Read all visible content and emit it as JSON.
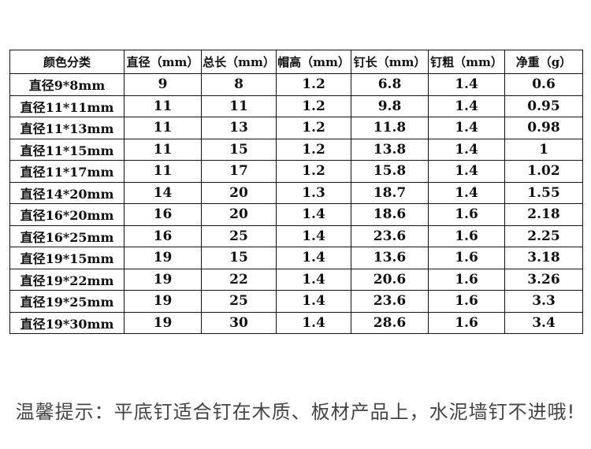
{
  "table": {
    "headers": [
      "颜色分类",
      "直径（mm）",
      "总长（mm）",
      "帽高（mm）",
      "钉长（mm）",
      "钉粗（mm）",
      "净重（g）"
    ],
    "rows": [
      [
        "直径9*8mm",
        "9",
        "8",
        "1.2",
        "6.8",
        "1.4",
        "0.6"
      ],
      [
        "直径11*11mm",
        "11",
        "11",
        "1.2",
        "9.8",
        "1.4",
        "0.95"
      ],
      [
        "直径11*13mm",
        "11",
        "13",
        "1.2",
        "11.8",
        "1.4",
        "0.98"
      ],
      [
        "直径11*15mm",
        "11",
        "15",
        "1.2",
        "13.8",
        "1.4",
        "1"
      ],
      [
        "直径11*17mm",
        "11",
        "17",
        "1.2",
        "15.8",
        "1.4",
        "1.02"
      ],
      [
        "直径14*20mm",
        "14",
        "20",
        "1.3",
        "18.7",
        "1.4",
        "1.55"
      ],
      [
        "直径16*20mm",
        "16",
        "20",
        "1.4",
        "18.6",
        "1.6",
        "2.18"
      ],
      [
        "直径16*25mm",
        "16",
        "25",
        "1.4",
        "23.6",
        "1.6",
        "2.25"
      ],
      [
        "直径19*15mm",
        "19",
        "15",
        "1.4",
        "13.6",
        "1.6",
        "3.18"
      ],
      [
        "直径19*22mm",
        "19",
        "22",
        "1.4",
        "20.6",
        "1.6",
        "3.26"
      ],
      [
        "直径19*25mm",
        "19",
        "25",
        "1.4",
        "23.6",
        "1.6",
        "3.3"
      ],
      [
        "直径19*30mm",
        "19",
        "30",
        "1.4",
        "28.6",
        "1.6",
        "3.4"
      ]
    ]
  },
  "tip": "温馨提示：平底钉适合钉在木质、板材产品上，水泥墙钉不进哦!"
}
